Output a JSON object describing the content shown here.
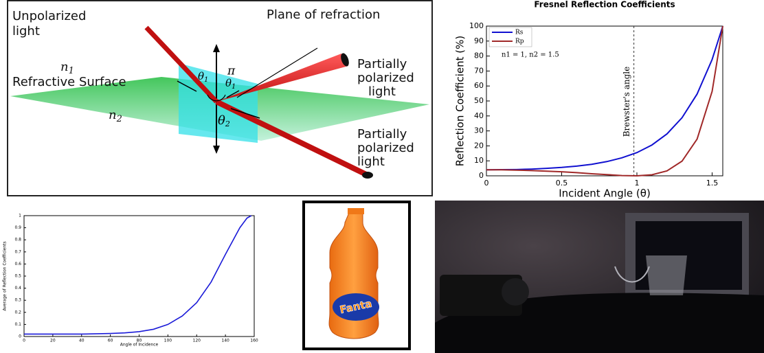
{
  "diagram": {
    "incident_label": [
      "Unpolarized",
      "light"
    ],
    "plane_label": "Plane of refraction",
    "n1": {
      "base": "n",
      "sub": "1"
    },
    "surface_label": "Refractive Surface",
    "n2": {
      "base": "n",
      "sub": "2"
    },
    "reflected_label": [
      "Partially",
      "polarized",
      "light"
    ],
    "refracted_label": [
      "Partially",
      "polarized",
      "light"
    ],
    "theta1_left": {
      "base": "θ",
      "sub": "1"
    },
    "pi": "π",
    "theta1_right": {
      "base": "θ",
      "sub": "1"
    },
    "theta2": {
      "base": "θ",
      "sub": "2"
    }
  },
  "chart_data": [
    {
      "type": "line",
      "title": "Fresnel Reflection Coefficients",
      "x_label": "Incident Angle (θ)",
      "y_label": "Reflection Coefficient (%)",
      "x": [
        0,
        0.1,
        0.2,
        0.3,
        0.4,
        0.5,
        0.6,
        0.7,
        0.8,
        0.9,
        1.0,
        1.1,
        1.2,
        1.3,
        1.4,
        1.5,
        1.5708
      ],
      "series": [
        {
          "name": "Rs",
          "color": "#1010d0",
          "values": [
            4.0,
            4.1,
            4.2,
            4.5,
            5.0,
            5.6,
            6.5,
            7.7,
            9.5,
            12.0,
            15.5,
            20.6,
            28.0,
            38.8,
            54.6,
            77.7,
            100
          ]
        },
        {
          "name": "Rp",
          "color": "#a02828",
          "values": [
            4.0,
            4.0,
            3.8,
            3.5,
            3.1,
            2.7,
            2.1,
            1.4,
            0.8,
            0.2,
            0.0,
            0.7,
            3.3,
            9.8,
            24.5,
            56.4,
            100
          ]
        }
      ],
      "annotation": "n1 = 1, n2 = 1.5",
      "vline": {
        "x": 0.98,
        "label": "Brewster's angle"
      },
      "xlim": [
        0,
        1.5708
      ],
      "xticks": [
        0,
        0.5,
        1,
        1.5
      ],
      "ylim": [
        0,
        100
      ],
      "yticks": [
        0,
        10,
        20,
        30,
        40,
        50,
        60,
        70,
        80,
        90,
        100
      ]
    },
    {
      "type": "line",
      "x_label": "Angle of Incidence",
      "y_label": "Average of Reflection Coefficients",
      "x": [
        0,
        20,
        40,
        60,
        70,
        80,
        90,
        100,
        110,
        120,
        130,
        140,
        150,
        155,
        158
      ],
      "values": [
        0.02,
        0.02,
        0.02,
        0.025,
        0.03,
        0.04,
        0.06,
        0.1,
        0.17,
        0.28,
        0.45,
        0.68,
        0.9,
        0.98,
        1.0
      ],
      "color": "#1a1ad8",
      "xlim": [
        0,
        160
      ],
      "xticks": [
        0,
        20,
        40,
        60,
        80,
        100,
        120,
        140,
        160
      ],
      "ylim": [
        0,
        1
      ],
      "yticks": [
        0,
        0.1,
        0.2,
        0.3,
        0.4,
        0.5,
        0.6,
        0.7,
        0.8,
        0.9,
        1
      ]
    }
  ],
  "photo": {
    "brand": "Fanta"
  }
}
